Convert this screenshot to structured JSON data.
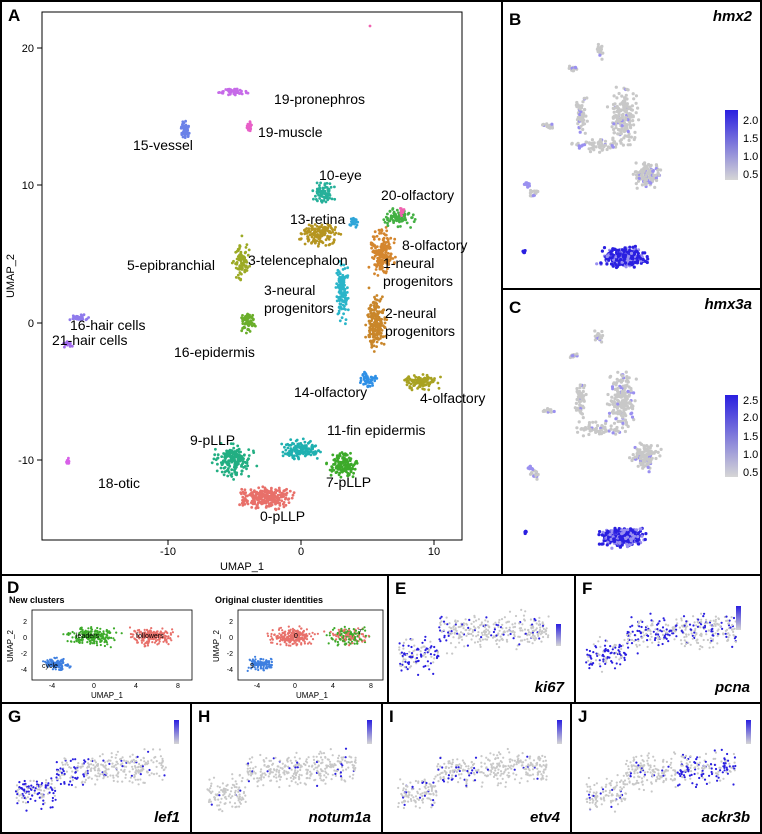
{
  "panels": {
    "A": {
      "letter": "A",
      "xlabel": "UMAP_1",
      "ylabel": "UMAP_2",
      "xticks": [
        "-10",
        "0",
        "10"
      ],
      "yticks": [
        "20",
        "10",
        "0",
        "-10"
      ],
      "clusters": [
        {
          "name": "0-pLLP",
          "color": "#E8706A"
        },
        {
          "name": "1-neural progenitors",
          "color": "#D4862E"
        },
        {
          "name": "2-neural progenitors",
          "color": "#C9862A"
        },
        {
          "name": "3-telencephalon",
          "color": "#B59520"
        },
        {
          "name": "3-neural progenitors",
          "color": "#2BB5C9"
        },
        {
          "name": "4-olfactory",
          "color": "#A8A222"
        },
        {
          "name": "5-epibranchial",
          "color": "#9CAA25"
        },
        {
          "name": "7-pLLP",
          "color": "#3DAA2A"
        },
        {
          "name": "8-olfactory",
          "color": "#44B044"
        },
        {
          "name": "9-pLLP",
          "color": "#22AE82"
        },
        {
          "name": "10-eye",
          "color": "#26B09A"
        },
        {
          "name": "11-fin epidermis",
          "color": "#1FB0B0"
        },
        {
          "name": "13-retina",
          "color": "#2FA5D8"
        },
        {
          "name": "14-olfactory",
          "color": "#2F90E6"
        },
        {
          "name": "15-vessel",
          "color": "#6B82E8"
        },
        {
          "name": "16-hair cells",
          "color": "#8F7AEC"
        },
        {
          "name": "16-epidermis",
          "color": "#6AAE2A"
        },
        {
          "name": "18-otic",
          "color": "#D860E8"
        },
        {
          "name": "19-pronephros",
          "color": "#C66AE8"
        },
        {
          "name": "19-muscle",
          "color": "#E85FC8"
        },
        {
          "name": "20-olfactory",
          "color": "#F062B0"
        },
        {
          "name": "21-hair cells",
          "color": "#A06AEC"
        }
      ]
    },
    "B": {
      "letter": "B",
      "gene": "hmx2",
      "legend": [
        "2.0",
        "1.5",
        "1.0",
        "0.5"
      ]
    },
    "C": {
      "letter": "C",
      "gene": "hmx3a",
      "legend": [
        "2.5",
        "2.0",
        "1.5",
        "1.0",
        "0.5"
      ]
    },
    "D": {
      "letter": "D",
      "left": {
        "title": "New clusters",
        "labels": [
          "leaders",
          "followers",
          "cycle"
        ],
        "xlabel": "UMAP_1",
        "ylabel": "UMAP_2",
        "xticks": [
          "-4",
          "0",
          "4",
          "8"
        ],
        "yticks": [
          "2",
          "0",
          "-2",
          "-4"
        ]
      },
      "right": {
        "title": "Original cluster identities",
        "labels": [
          "0",
          "7",
          "9"
        ],
        "xlabel": "UMAP_1",
        "ylabel": "UMAP_2",
        "xticks": [
          "-4",
          "0",
          "4",
          "8"
        ],
        "yticks": [
          "2",
          "0",
          "-2",
          "-4"
        ]
      }
    },
    "E": {
      "letter": "E",
      "gene": "ki67"
    },
    "F": {
      "letter": "F",
      "gene": "pcna"
    },
    "G": {
      "letter": "G",
      "gene": "lef1"
    },
    "H": {
      "letter": "H",
      "gene": "notum1a"
    },
    "I": {
      "letter": "I",
      "gene": "etv4"
    },
    "J": {
      "letter": "J",
      "gene": "ackr3b"
    }
  },
  "colors": {
    "grey": "#C8C8C8",
    "blue": "#2A1FE0",
    "light_blue": "#9A90F0",
    "red": "#E8706A",
    "green": "#3DAA2A",
    "cyan_blue": "#3E7FE0"
  }
}
